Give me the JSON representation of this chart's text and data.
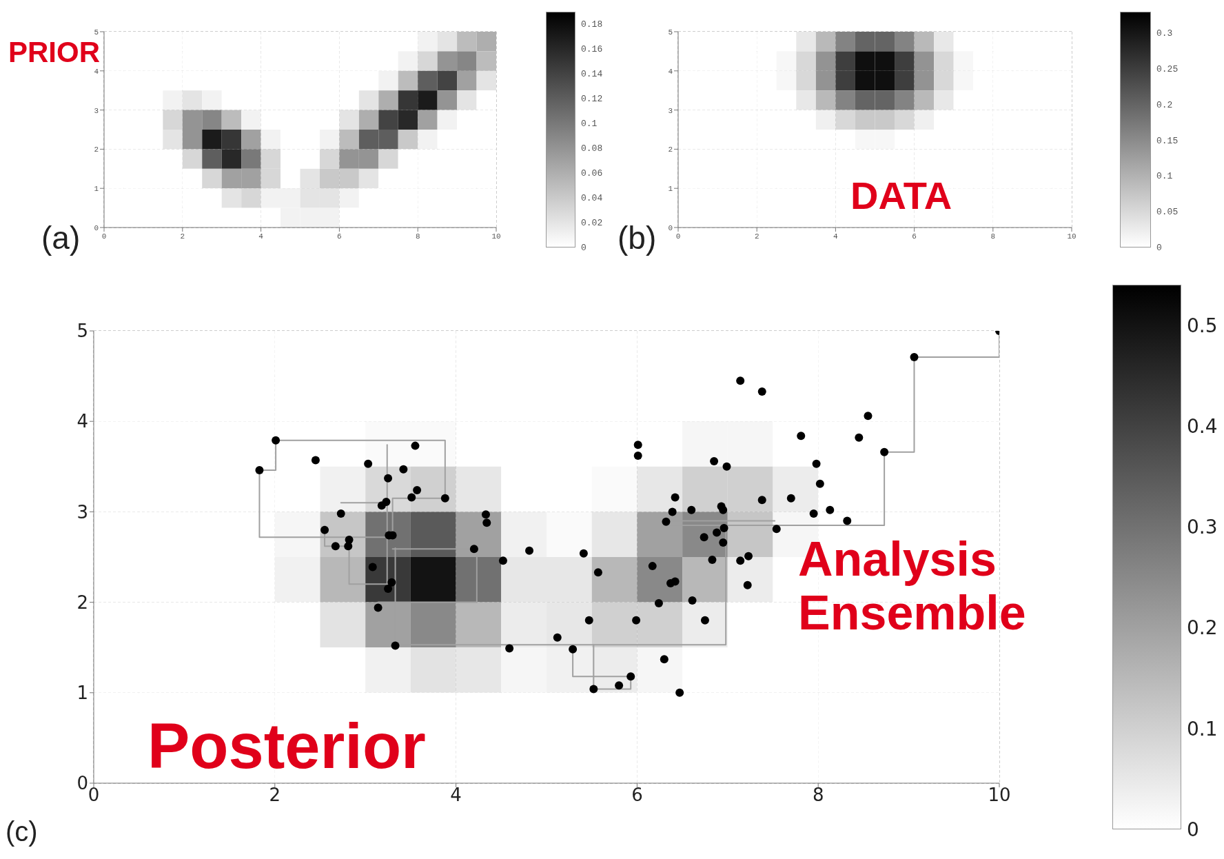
{
  "chart_data": [
    {
      "type": "heatmap",
      "title": "PRIOR",
      "annotations": [
        "(a)"
      ],
      "xlim": [
        0,
        10
      ],
      "ylim": [
        0,
        5
      ],
      "xticks": [
        0,
        2,
        4,
        6,
        8,
        10
      ],
      "yticks": [
        0,
        1,
        2,
        3,
        4,
        5
      ],
      "grid": true,
      "clim": [
        0,
        0.19
      ],
      "cticks": [
        0,
        0.02,
        0.04,
        0.06,
        0.08,
        0.1,
        0.12,
        0.14,
        0.16,
        0.18
      ],
      "cells": [
        [
          0,
          0,
          0,
          0,
          0,
          0,
          0,
          0,
          0,
          0,
          0,
          0,
          0,
          0,
          0,
          0,
          0.01,
          0.02,
          0.05,
          0.06
        ],
        [
          0,
          0,
          0,
          0,
          0,
          0,
          0,
          0,
          0,
          0,
          0,
          0,
          0,
          0,
          0,
          0.01,
          0.03,
          0.08,
          0.09,
          0.05
        ],
        [
          0,
          0,
          0,
          0,
          0,
          0,
          0,
          0,
          0,
          0,
          0,
          0,
          0,
          0,
          0.01,
          0.05,
          0.12,
          0.14,
          0.07,
          0.02
        ],
        [
          0,
          0,
          0,
          0.01,
          0.02,
          0.01,
          0,
          0,
          0,
          0,
          0,
          0,
          0,
          0.02,
          0.06,
          0.15,
          0.17,
          0.08,
          0.02,
          0
        ],
        [
          0,
          0,
          0,
          0.03,
          0.08,
          0.09,
          0.05,
          0.01,
          0,
          0,
          0,
          0,
          0.02,
          0.06,
          0.14,
          0.16,
          0.07,
          0.01,
          0,
          0
        ],
        [
          0,
          0,
          0,
          0.02,
          0.08,
          0.17,
          0.15,
          0.07,
          0.01,
          0,
          0,
          0.01,
          0.05,
          0.12,
          0.12,
          0.04,
          0.01,
          0,
          0,
          0
        ],
        [
          0,
          0,
          0,
          0,
          0.03,
          0.12,
          0.16,
          0.1,
          0.03,
          0,
          0,
          0.03,
          0.08,
          0.08,
          0.03,
          0,
          0,
          0,
          0,
          0
        ],
        [
          0,
          0,
          0,
          0,
          0,
          0.03,
          0.07,
          0.07,
          0.03,
          0,
          0.02,
          0.04,
          0.04,
          0.02,
          0,
          0,
          0,
          0,
          0,
          0
        ],
        [
          0,
          0,
          0,
          0,
          0,
          0,
          0.02,
          0.03,
          0.01,
          0.01,
          0.02,
          0.02,
          0.01,
          0,
          0,
          0,
          0,
          0,
          0,
          0
        ],
        [
          0,
          0,
          0,
          0,
          0,
          0,
          0,
          0,
          0,
          0.01,
          0.01,
          0.01,
          0,
          0,
          0,
          0,
          0,
          0,
          0,
          0
        ]
      ]
    },
    {
      "type": "heatmap",
      "title": "DATA",
      "annotations": [
        "(b)"
      ],
      "xlim": [
        0,
        10
      ],
      "ylim": [
        0,
        5
      ],
      "xticks": [
        0,
        2,
        4,
        6,
        8,
        10
      ],
      "yticks": [
        0,
        1,
        2,
        3,
        4,
        5
      ],
      "grid": true,
      "clim": [
        0,
        0.33
      ],
      "cticks": [
        0,
        0.05,
        0.1,
        0.15,
        0.2,
        0.25,
        0.3
      ],
      "cells": [
        [
          0,
          0,
          0,
          0,
          0,
          0,
          0.03,
          0.09,
          0.16,
          0.2,
          0.2,
          0.16,
          0.09,
          0.03,
          0,
          0,
          0,
          0,
          0,
          0
        ],
        [
          0,
          0,
          0,
          0,
          0,
          0.01,
          0.05,
          0.14,
          0.25,
          0.31,
          0.31,
          0.25,
          0.14,
          0.05,
          0.01,
          0,
          0,
          0,
          0,
          0
        ],
        [
          0,
          0,
          0,
          0,
          0,
          0.01,
          0.05,
          0.14,
          0.25,
          0.31,
          0.31,
          0.25,
          0.14,
          0.05,
          0.01,
          0,
          0,
          0,
          0,
          0
        ],
        [
          0,
          0,
          0,
          0,
          0,
          0,
          0.03,
          0.09,
          0.16,
          0.2,
          0.2,
          0.16,
          0.09,
          0.03,
          0,
          0,
          0,
          0,
          0,
          0
        ],
        [
          0,
          0,
          0,
          0,
          0,
          0,
          0,
          0.02,
          0.05,
          0.07,
          0.07,
          0.05,
          0.02,
          0,
          0,
          0,
          0,
          0,
          0,
          0
        ],
        [
          0,
          0,
          0,
          0,
          0,
          0,
          0,
          0,
          0,
          0.01,
          0.01,
          0,
          0,
          0,
          0,
          0,
          0,
          0,
          0,
          0
        ],
        [
          0,
          0,
          0,
          0,
          0,
          0,
          0,
          0,
          0,
          0,
          0,
          0,
          0,
          0,
          0,
          0,
          0,
          0,
          0,
          0
        ],
        [
          0,
          0,
          0,
          0,
          0,
          0,
          0,
          0,
          0,
          0,
          0,
          0,
          0,
          0,
          0,
          0,
          0,
          0,
          0,
          0
        ],
        [
          0,
          0,
          0,
          0,
          0,
          0,
          0,
          0,
          0,
          0,
          0,
          0,
          0,
          0,
          0,
          0,
          0,
          0,
          0,
          0
        ],
        [
          0,
          0,
          0,
          0,
          0,
          0,
          0,
          0,
          0,
          0,
          0,
          0,
          0,
          0,
          0,
          0,
          0,
          0,
          0,
          0
        ]
      ]
    },
    {
      "type": "heatmap",
      "title": "Posterior",
      "annotations": [
        "(c)",
        "Analysis Ensemble"
      ],
      "xlim": [
        0,
        10
      ],
      "ylim": [
        0,
        5
      ],
      "xticks": [
        0,
        2,
        4,
        6,
        8,
        10
      ],
      "yticks": [
        0,
        1,
        2,
        3,
        4,
        5
      ],
      "grid": true,
      "clim": [
        0,
        0.54
      ],
      "cticks": [
        0,
        0.1,
        0.2,
        0.3,
        0.4,
        0.5
      ],
      "cells": [
        [
          0,
          0,
          0,
          0,
          0,
          0,
          0,
          0,
          0,
          0,
          0,
          0,
          0,
          0,
          0,
          0,
          0,
          0,
          0,
          0
        ],
        [
          0,
          0,
          0,
          0,
          0,
          0,
          0,
          0,
          0,
          0,
          0,
          0,
          0,
          0,
          0,
          0,
          0,
          0,
          0,
          0
        ],
        [
          0,
          0,
          0,
          0,
          0,
          0,
          0.01,
          0.01,
          0,
          0,
          0,
          0,
          0,
          0.02,
          0.02,
          0,
          0,
          0,
          0,
          0
        ],
        [
          0,
          0,
          0,
          0,
          0,
          0.03,
          0.08,
          0.1,
          0.05,
          0,
          0,
          0.01,
          0.05,
          0.1,
          0.1,
          0.04,
          0,
          0,
          0,
          0
        ],
        [
          0,
          0,
          0,
          0,
          0.02,
          0.12,
          0.3,
          0.35,
          0.2,
          0.03,
          0.01,
          0.05,
          0.2,
          0.25,
          0.12,
          0.02,
          0,
          0,
          0,
          0
        ],
        [
          0,
          0,
          0,
          0,
          0.03,
          0.15,
          0.42,
          0.5,
          0.3,
          0.05,
          0.05,
          0.15,
          0.25,
          0.15,
          0.04,
          0,
          0,
          0,
          0,
          0
        ],
        [
          0,
          0,
          0,
          0,
          0,
          0.06,
          0.2,
          0.25,
          0.15,
          0.04,
          0.05,
          0.1,
          0.1,
          0.04,
          0,
          0,
          0,
          0,
          0,
          0
        ],
        [
          0,
          0,
          0,
          0,
          0,
          0,
          0.03,
          0.06,
          0.05,
          0.02,
          0.03,
          0.04,
          0.02,
          0,
          0,
          0,
          0,
          0,
          0,
          0
        ],
        [
          0,
          0,
          0,
          0,
          0,
          0,
          0,
          0,
          0,
          0,
          0,
          0,
          0,
          0,
          0,
          0,
          0,
          0,
          0,
          0
        ],
        [
          0,
          0,
          0,
          0,
          0,
          0,
          0,
          0,
          0,
          0,
          0,
          0,
          0,
          0,
          0,
          0,
          0,
          0,
          0,
          0
        ]
      ],
      "series": [
        {
          "type": "line",
          "color": "#a0a0a0",
          "x": [
            10,
            10,
            9.06,
            9.06,
            8.73,
            8.73,
            6.35
          ],
          "values": [
            5,
            4.71,
            4.71,
            3.66,
            3.66,
            2.85,
            2.85
          ]
        },
        {
          "type": "line",
          "color": "#a0a0a0",
          "x": [
            6.35,
            7.52
          ],
          "values": [
            2.9,
            2.9
          ]
        },
        {
          "type": "line",
          "color": "#a0a0a0",
          "x": [
            6.98,
            6.98,
            3.33,
            3.33
          ],
          "values": [
            2.85,
            1.53,
            1.53,
            2.6
          ]
        },
        {
          "type": "line",
          "color": "#a0a0a0",
          "x": [
            4.23,
            4.23,
            3.3
          ],
          "values": [
            2,
            2.59,
            2.59
          ]
        },
        {
          "type": "line",
          "color": "#a0a0a0",
          "x": [
            3.14,
            4.23
          ],
          "values": [
            2,
            2
          ]
        },
        {
          "type": "line",
          "color": "#a0a0a0",
          "x": [
            1.83,
            2.01,
            2.01,
            3.88,
            3.88,
            3.3,
            3.3
          ],
          "values": [
            3.46,
            3.46,
            3.79,
            3.79,
            3.15,
            3.15,
            2.74
          ]
        },
        {
          "type": "line",
          "color": "#a0a0a0",
          "x": [
            1.83,
            1.83,
            3.26
          ],
          "values": [
            3.46,
            2.72,
            2.72
          ]
        },
        {
          "type": "line",
          "color": "#a0a0a0",
          "x": [
            3.24,
            3.24
          ],
          "values": [
            3.74,
            2.16
          ]
        },
        {
          "type": "line",
          "color": "#a0a0a0",
          "x": [
            2.73,
            3.23
          ],
          "values": [
            3.1,
            3.1
          ]
        },
        {
          "type": "line",
          "color": "#a0a0a0",
          "x": [
            2.55,
            2.55,
            2.81
          ],
          "values": [
            2.8,
            2.62,
            2.62
          ]
        },
        {
          "type": "line",
          "color": "#a0a0a0",
          "x": [
            2.82,
            2.82,
            3.25
          ],
          "values": [
            2.69,
            2.2,
            2.2
          ]
        },
        {
          "type": "line",
          "color": "#a0a0a0",
          "x": [
            5.29,
            5.29,
            5.93
          ],
          "values": [
            1.48,
            1.18,
            1.18
          ]
        },
        {
          "type": "line",
          "color": "#a0a0a0",
          "x": [
            5.52,
            5.52,
            5.93,
            5.93
          ],
          "values": [
            1.53,
            1.04,
            1.04,
            1.18
          ]
        },
        {
          "type": "scatter",
          "color": "#000000",
          "marker": "circle",
          "x": [
            2.01,
            1.83,
            2.45,
            3.03,
            3.55,
            3.42,
            3.25,
            3.57,
            3.51,
            3.88,
            3.23,
            3.18,
            2.73,
            2.55,
            2.67,
            2.82,
            2.81,
            3.26,
            3.3,
            4.2,
            3.08,
            3.29,
            3.25,
            3.14,
            3.33,
            4.33,
            4.34,
            4.52,
            4.81,
            5.41,
            5.57,
            4.59,
            5.12,
            5.29,
            5.47,
            5.99,
            6.01,
            6.01,
            5.52,
            5.8,
            5.93,
            6.3,
            6.47,
            6.24,
            6.61,
            6.75,
            6.17,
            6.37,
            6.42,
            6.83,
            7.14,
            7.23,
            7.22,
            6.74,
            6.88,
            6.96,
            6.95,
            6.32,
            6.39,
            6.42,
            6.6,
            6.93,
            6.95,
            6.85,
            6.99,
            7.38,
            7.7,
            7.54,
            7.14,
            7.38,
            7.81,
            7.98,
            8.02,
            7.95,
            8.13,
            8.32,
            8.45,
            8.55,
            8.73,
            9.06,
            10
          ],
          "values": [
            3.79,
            3.46,
            3.57,
            3.53,
            3.73,
            3.47,
            3.37,
            3.24,
            3.16,
            3.15,
            3.11,
            3.07,
            2.98,
            2.8,
            2.62,
            2.69,
            2.62,
            2.74,
            2.74,
            2.59,
            2.39,
            2.22,
            2.15,
            1.94,
            1.52,
            2.97,
            2.88,
            2.46,
            2.57,
            2.54,
            2.33,
            1.49,
            1.61,
            1.48,
            1.8,
            1.8,
            3.74,
            3.62,
            1.04,
            1.08,
            1.18,
            1.37,
            1,
            1.99,
            2.02,
            1.8,
            2.4,
            2.21,
            2.23,
            2.47,
            2.46,
            2.51,
            2.19,
            2.72,
            2.77,
            2.82,
            2.66,
            2.89,
            3,
            3.16,
            3.02,
            3.06,
            3.02,
            3.56,
            3.5,
            3.13,
            3.15,
            2.81,
            4.45,
            4.33,
            3.84,
            3.53,
            3.31,
            2.98,
            3.02,
            2.9,
            3.82,
            4.06,
            3.66,
            4.71,
            5
          ]
        }
      ]
    }
  ]
}
